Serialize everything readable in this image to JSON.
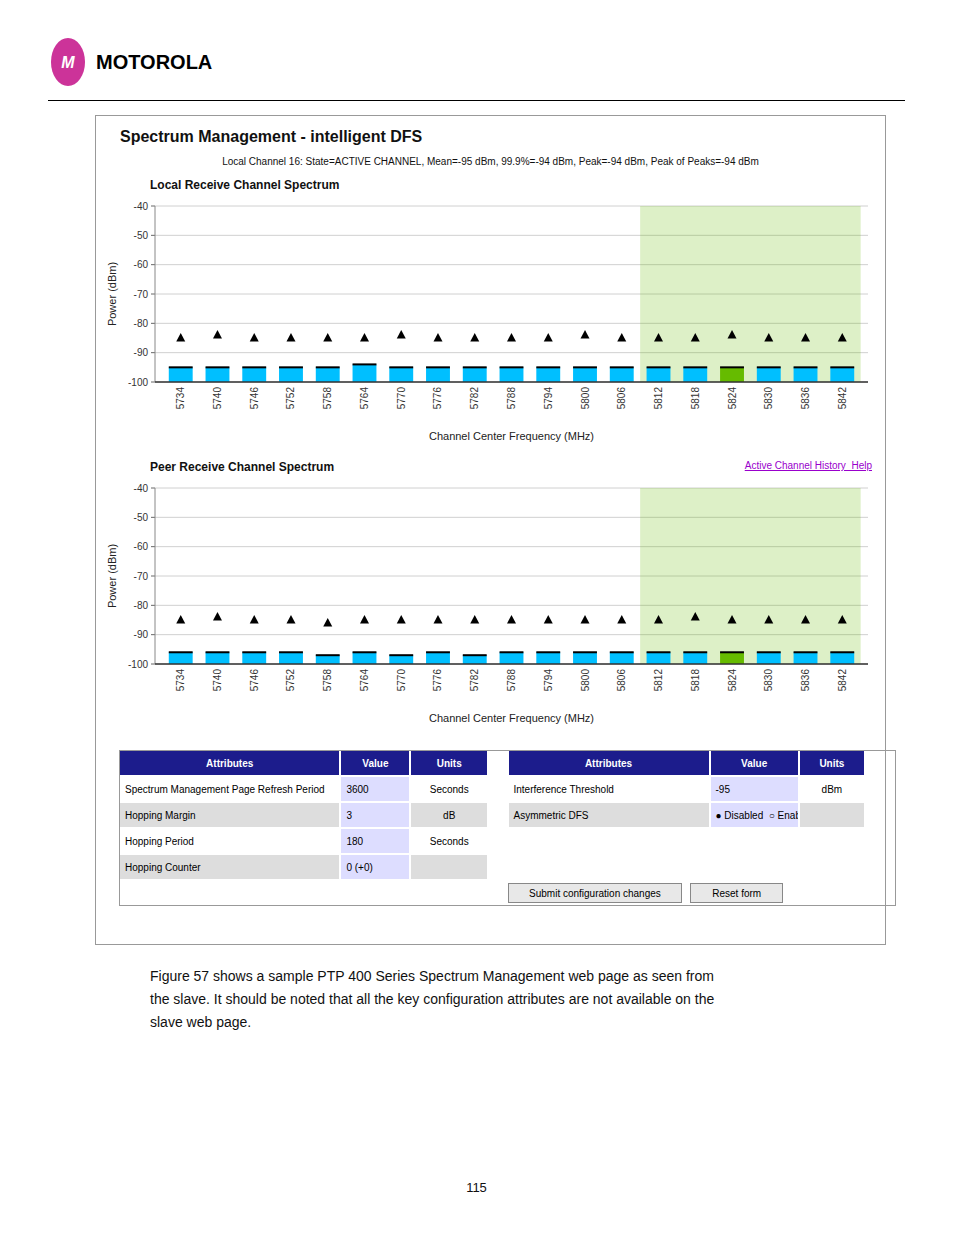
{
  "logo": {
    "mark": "M",
    "name": "MOTOROLA",
    "color": "#CC3399"
  },
  "title": "Spectrum Management - intelligent DFS",
  "subtitle": "Local Channel 16: State=ACTIVE CHANNEL, Mean=-95 dBm, 99.9%=-94 dBm, Peak=-94 dBm, Peak of Peaks=-94 dBm",
  "chart_data": [
    {
      "type": "bar",
      "title": "Local Receive Channel Spectrum",
      "x_label": "Channel Center Frequency (MHz)",
      "y_label": "Power (dBm)",
      "categories": [
        5734,
        5740,
        5746,
        5752,
        5758,
        5764,
        5770,
        5776,
        5782,
        5788,
        5794,
        5800,
        5806,
        5812,
        5818,
        5824,
        5830,
        5836,
        5842
      ],
      "series": [
        {
          "type": "bar",
          "values": [
            -95,
            -95,
            -95,
            -95,
            -95,
            -94,
            -95,
            -95,
            -95,
            -95,
            -95,
            -95,
            -95,
            -95,
            -95,
            -95,
            -95,
            -95,
            -95
          ],
          "colors": [
            "#00BFFF",
            "#00BFFF",
            "#00BFFF",
            "#00BFFF",
            "#00BFFF",
            "#00BFFF",
            "#00BFFF",
            "#00BFFF",
            "#00BFFF",
            "#00BFFF",
            "#00BFFF",
            "#00BFFF",
            "#00BFFF",
            "#00BFFF",
            "#00BFFF",
            "#66BB00",
            "#00BFFF",
            "#00BFFF",
            "#00BFFF"
          ]
        },
        {
          "type": "scatter",
          "marker": "triangle",
          "color": "#000000",
          "values": [
            -85,
            -84,
            -85,
            -85,
            -85,
            -85,
            -84,
            -85,
            -85,
            -85,
            -85,
            -84,
            -85,
            -85,
            -85,
            -84,
            -85,
            -85,
            -85
          ]
        }
      ],
      "highlight": {
        "from": 5812,
        "to": 5842,
        "color": "#66BB00"
      },
      "ylim": [
        -100,
        -40
      ],
      "yticks": [
        -100,
        -90,
        -80,
        -70,
        -60,
        -50,
        -40
      ],
      "grid": true
    },
    {
      "type": "bar",
      "title": "Peer Receive Channel Spectrum",
      "x_label": "Channel Center Frequency (MHz)",
      "y_label": "Power (dBm)",
      "categories": [
        5734,
        5740,
        5746,
        5752,
        5758,
        5764,
        5770,
        5776,
        5782,
        5788,
        5794,
        5800,
        5806,
        5812,
        5818,
        5824,
        5830,
        5836,
        5842
      ],
      "series": [
        {
          "type": "bar",
          "values": [
            -96,
            -96,
            -96,
            -96,
            -97,
            -96,
            -97,
            -96,
            -97,
            -96,
            -96,
            -96,
            -96,
            -96,
            -96,
            -96,
            -96,
            -96,
            -96
          ],
          "colors": [
            "#00BFFF",
            "#00BFFF",
            "#00BFFF",
            "#00BFFF",
            "#00BFFF",
            "#00BFFF",
            "#00BFFF",
            "#00BFFF",
            "#00BFFF",
            "#00BFFF",
            "#00BFFF",
            "#00BFFF",
            "#00BFFF",
            "#00BFFF",
            "#00BFFF",
            "#66BB00",
            "#00BFFF",
            "#00BFFF",
            "#00BFFF"
          ]
        },
        {
          "type": "scatter",
          "marker": "triangle",
          "color": "#000000",
          "values": [
            -85,
            -84,
            -85,
            -85,
            -86,
            -85,
            -85,
            -85,
            -85,
            -85,
            -85,
            -85,
            -85,
            -85,
            -84,
            -85,
            -85,
            -85,
            -85
          ]
        }
      ],
      "highlight": {
        "from": 5812,
        "to": 5842,
        "color": "#66BB00"
      },
      "ylim": [
        -100,
        -40
      ],
      "yticks": [
        -100,
        -90,
        -80,
        -70,
        -60,
        -50,
        -40
      ],
      "grid": true
    }
  ],
  "link": {
    "text": "Active Channel History  Help",
    "color": "#9900CC"
  },
  "table": {
    "columns": [
      "Attributes",
      "Value",
      "Units"
    ],
    "header_color": "#1C1C8C",
    "alt_row_color": "#DDDDDD",
    "value_color": "#DDDDFF",
    "left_rows": [
      [
        "Spectrum Management Page Refresh Period",
        "3600",
        "Seconds"
      ],
      [
        "Hopping Margin",
        "3",
        "dB"
      ],
      [
        "Hopping Period",
        "180",
        "Seconds"
      ],
      [
        "Hopping Counter",
        "0 (+0)",
        null
      ]
    ],
    "right_rows": [
      [
        "Interference Threshold",
        "-95",
        "dBm"
      ],
      [
        "Asymmetric DFS",
        "● Disabled  ○ Enabled",
        null
      ]
    ],
    "buttons": [
      "Submit configuration changes",
      "Reset form"
    ]
  },
  "body_text": "Figure 57 shows a sample PTP 400 Series Spectrum Management web page as seen from\nthe slave. It should be noted that all the key configuration attributes are not available on the\nslave web page.",
  "page_number": 115
}
